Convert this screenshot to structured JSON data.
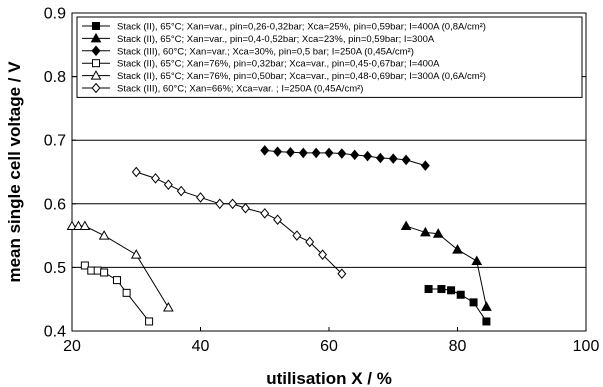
{
  "chart_data": {
    "type": "scatter",
    "title": "",
    "xlabel": "utilisation X / %",
    "ylabel": "mean single cell voltage / V",
    "xlim": [
      20,
      100
    ],
    "ylim": [
      0.4,
      0.9
    ],
    "x_ticks": [
      "20",
      "40",
      "60",
      "80",
      "100"
    ],
    "y_ticks": [
      "0.4",
      "0.5",
      "0.6",
      "0.7",
      "0.8",
      "0.9"
    ],
    "grid": "horizontal",
    "legend_position": "top-right",
    "series": [
      {
        "name": "Stack (II), 65°C; Xan=var., pin=0,26-0,32bar; Xca=25%, pin=0,59bar; I=400A (0,8A/cm²)",
        "marker": "square-filled",
        "x": [
          75.5,
          77.5,
          79,
          80.5,
          82.5,
          84.5
        ],
        "y": [
          0.466,
          0.466,
          0.464,
          0.457,
          0.445,
          0.415
        ]
      },
      {
        "name": "Stack (II), 65°C; Xan=var., pin=0,4-0,52bar; Xca=23%, pin=0,59bar; I=300A",
        "marker": "triangle-filled",
        "x": [
          72,
          75,
          77,
          80,
          83,
          84.5
        ],
        "y": [
          0.565,
          0.555,
          0.553,
          0.528,
          0.51,
          0.438
        ]
      },
      {
        "name": "Stack (III), 60°C; Xan=var.; Xca=30%, pin=0,5 bar; I=250A (0,45A/cm²)",
        "marker": "diamond-filled",
        "x": [
          50,
          52,
          54,
          56,
          58,
          60,
          62,
          64,
          66,
          68,
          70,
          72,
          75
        ],
        "y": [
          0.684,
          0.682,
          0.681,
          0.68,
          0.68,
          0.68,
          0.679,
          0.677,
          0.675,
          0.672,
          0.671,
          0.669,
          0.66
        ]
      },
      {
        "name": "Stack (II), 65°C; Xan=76%, pin=0,32bar; Xca=var., pin=0,45-0,67bar; I=400A",
        "marker": "square-open",
        "x": [
          22,
          23,
          24,
          25,
          27,
          28.5,
          32
        ],
        "y": [
          0.503,
          0.495,
          0.495,
          0.492,
          0.48,
          0.46,
          0.415
        ]
      },
      {
        "name": "Stack (II), 65°C; Xan=76%, pin=0,50bar; Xca=var., pin=0,48-0,69bar; I=300A (0,6A/cm²)",
        "marker": "triangle-open",
        "x": [
          20,
          21,
          22,
          25,
          30,
          35
        ],
        "y": [
          0.565,
          0.565,
          0.565,
          0.55,
          0.52,
          0.437
        ]
      },
      {
        "name": "Stack (III), 60°C; Xan=66%; Xca=var. ; I=250A (0,45A/cm²)",
        "marker": "diamond-open",
        "x": [
          30,
          33,
          35,
          37,
          40,
          43,
          45,
          47,
          50,
          52,
          55,
          57,
          59,
          62
        ],
        "y": [
          0.65,
          0.64,
          0.63,
          0.62,
          0.61,
          0.6,
          0.6,
          0.593,
          0.585,
          0.575,
          0.55,
          0.54,
          0.52,
          0.49
        ]
      }
    ]
  }
}
